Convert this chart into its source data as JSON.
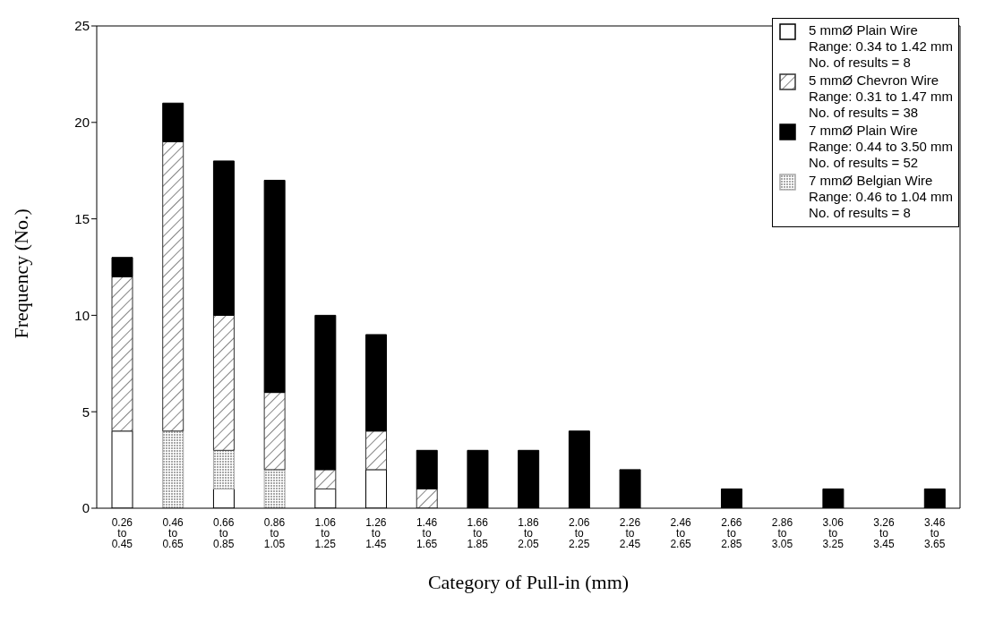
{
  "chart_data": {
    "type": "bar",
    "stacked": true,
    "xlabel": "Category of Pull-in (mm)",
    "ylabel": "Frequency (No.)",
    "categories": [
      "0.26\nto\n0.45",
      "0.46\nto\n0.65",
      "0.66\nto\n0.85",
      "0.86\nto\n1.05",
      "1.06\nto\n1.25",
      "1.26\nto\n1.45",
      "1.46\nto\n1.65",
      "1.66\nto\n1.85",
      "1.86\nto\n2.05",
      "2.06\nto\n2.25",
      "2.26\nto\n2.45",
      "2.46\nto\n2.65",
      "2.66\nto\n2.85",
      "2.86\nto\n3.05",
      "3.06\nto\n3.25",
      "3.26\nto\n3.45",
      "3.46\nto\n3.65"
    ],
    "series": [
      {
        "name": "5 mmØ Plain Wire\nRange: 0.34 to 1.42 mm\nNo. of results = 8",
        "color": "#ffffff",
        "values": [
          4,
          0,
          1,
          0,
          1,
          2,
          0,
          0,
          0,
          0,
          0,
          0,
          0,
          0,
          0,
          0,
          0
        ]
      },
      {
        "name": "7 mmØ Belgian Wire\nRange: 0.46 to 1.04 mm\nNo. of results = 8",
        "color": "#a8a8a8",
        "values": [
          0,
          4,
          2,
          2,
          0,
          0,
          0,
          0,
          0,
          0,
          0,
          0,
          0,
          0,
          0,
          0,
          0
        ]
      },
      {
        "name": "5 mmØ Chevron Wire\nRange: 0.31 to 1.47 mm\nNo. of results = 38",
        "color": "#333333",
        "values": [
          8,
          15,
          7,
          4,
          1,
          2,
          1,
          0,
          0,
          0,
          0,
          0,
          0,
          0,
          0,
          0,
          0
        ]
      },
      {
        "name": "7 mmØ Plain Wire\nRange: 0.44 to 3.50 mm\nNo. of results = 52",
        "color": "#000000",
        "values": [
          1,
          2,
          8,
          11,
          8,
          5,
          2,
          3,
          3,
          4,
          2,
          0,
          1,
          0,
          1,
          0,
          1
        ]
      }
    ],
    "ylim": [
      0,
      25
    ],
    "yticks": [
      0,
      5,
      10,
      15,
      20,
      25
    ],
    "grid": false,
    "legend": "top right"
  }
}
